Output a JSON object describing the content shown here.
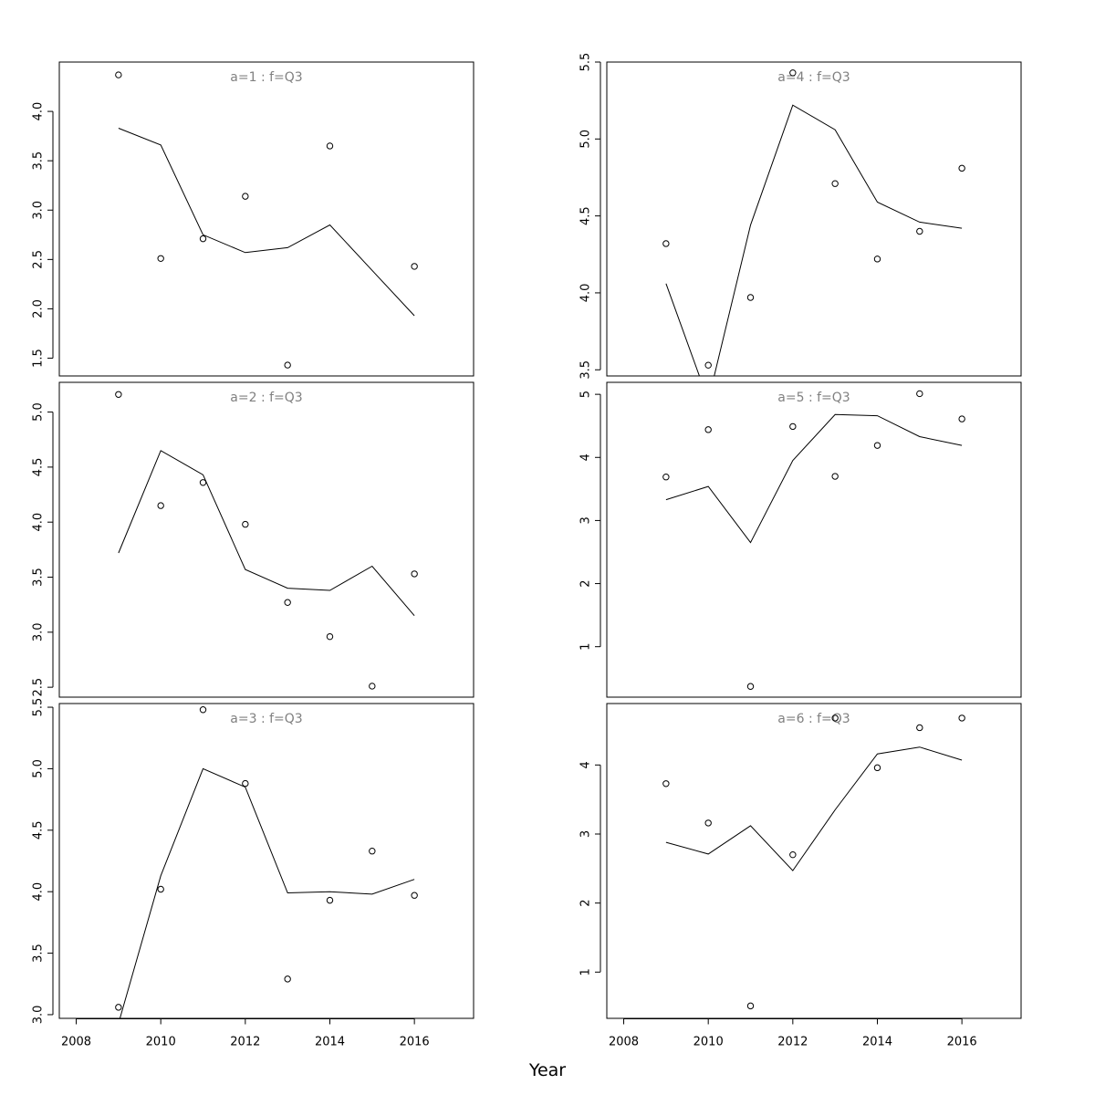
{
  "figure": {
    "xlabel": "Year"
  },
  "chart_data": [
    {
      "type": "line",
      "title": "a=1 : f=Q3",
      "x": [
        2009,
        2010,
        2011,
        2012,
        2013,
        2014,
        2015,
        2016
      ],
      "series": [
        {
          "style": "points",
          "values": [
            4.37,
            2.51,
            2.71,
            3.14,
            1.43,
            3.65,
            null,
            2.43
          ]
        },
        {
          "style": "line",
          "values": [
            3.83,
            3.66,
            2.75,
            2.57,
            2.62,
            2.85,
            2.39,
            1.93
          ]
        }
      ],
      "xlim": [
        2007.6,
        2017.4
      ],
      "ylim": [
        1.32,
        4.5
      ],
      "xticks": [
        2008,
        2010,
        2012,
        2014,
        2016
      ],
      "yticks": [
        1.5,
        2.0,
        2.5,
        3.0,
        3.5,
        4.0
      ],
      "ytick_labels": [
        "1.5",
        "2.0",
        "2.5",
        "3.0",
        "3.5",
        "4.0"
      ],
      "show_xaxis": false
    },
    {
      "type": "line",
      "title": "a=2 : f=Q3",
      "x": [
        2009,
        2010,
        2011,
        2012,
        2013,
        2014,
        2015,
        2016
      ],
      "series": [
        {
          "style": "points",
          "values": [
            5.16,
            4.15,
            4.36,
            3.98,
            3.27,
            2.96,
            2.51,
            3.53
          ]
        },
        {
          "style": "line",
          "values": [
            3.72,
            4.65,
            4.43,
            3.57,
            3.4,
            3.38,
            3.6,
            3.15
          ]
        }
      ],
      "xlim": [
        2007.6,
        2017.4
      ],
      "ylim": [
        2.41,
        5.27
      ],
      "xticks": [
        2008,
        2010,
        2012,
        2014,
        2016
      ],
      "yticks": [
        2.5,
        3.0,
        3.5,
        4.0,
        4.5,
        5.0
      ],
      "ytick_labels": [
        "2.5",
        "3.0",
        "3.5",
        "4.0",
        "4.5",
        "5.0"
      ],
      "show_xaxis": false
    },
    {
      "type": "line",
      "title": "a=3 : f=Q3",
      "x": [
        2009,
        2010,
        2011,
        2012,
        2013,
        2014,
        2015,
        2016
      ],
      "series": [
        {
          "style": "points",
          "values": [
            3.06,
            4.02,
            5.48,
            4.88,
            3.29,
            3.93,
            4.33,
            3.97
          ]
        },
        {
          "style": "line",
          "values": [
            2.93,
            4.13,
            5.0,
            4.85,
            3.99,
            4.0,
            3.98,
            4.1
          ]
        }
      ],
      "xlim": [
        2007.6,
        2017.4
      ],
      "ylim": [
        2.97,
        5.53
      ],
      "xticks": [
        2008,
        2010,
        2012,
        2014,
        2016
      ],
      "yticks": [
        3.0,
        3.5,
        4.0,
        4.5,
        5.0,
        5.5
      ],
      "ytick_labels": [
        "3.0",
        "3.5",
        "4.0",
        "4.5",
        "5.0",
        "5.5"
      ],
      "show_xaxis": true,
      "xtick_labels": [
        "2008",
        "2010",
        "2012",
        "2014",
        "2016"
      ]
    },
    {
      "type": "line",
      "title": "a=4 : f=Q3",
      "x": [
        2009,
        2010,
        2011,
        2012,
        2013,
        2014,
        2015,
        2016
      ],
      "series": [
        {
          "style": "points",
          "values": [
            4.32,
            3.53,
            3.97,
            5.43,
            4.71,
            4.22,
            4.4,
            4.81
          ]
        },
        {
          "style": "line",
          "values": [
            4.06,
            3.3,
            4.44,
            5.22,
            5.06,
            4.59,
            4.46,
            4.42
          ]
        }
      ],
      "xlim": [
        2007.6,
        2017.4
      ],
      "ylim": [
        3.46,
        5.5
      ],
      "xticks": [
        2008,
        2010,
        2012,
        2014,
        2016
      ],
      "yticks": [
        3.5,
        4.0,
        4.5,
        5.0,
        5.5
      ],
      "ytick_labels": [
        "3.5",
        "4.0",
        "4.5",
        "5.0",
        "5.5"
      ],
      "show_xaxis": false
    },
    {
      "type": "line",
      "title": "a=5 : f=Q3",
      "x": [
        2009,
        2010,
        2011,
        2012,
        2013,
        2014,
        2015,
        2016
      ],
      "series": [
        {
          "style": "points",
          "values": [
            3.69,
            4.44,
            0.37,
            4.49,
            3.7,
            4.19,
            5.01,
            4.61
          ]
        },
        {
          "style": "line",
          "values": [
            3.33,
            3.54,
            2.65,
            3.95,
            4.68,
            4.66,
            4.33,
            4.19
          ]
        }
      ],
      "xlim": [
        2007.6,
        2017.4
      ],
      "ylim": [
        0.2,
        5.19
      ],
      "xticks": [
        2008,
        2010,
        2012,
        2014,
        2016
      ],
      "yticks": [
        1,
        2,
        3,
        4,
        5
      ],
      "ytick_labels": [
        "1",
        "2",
        "3",
        "4",
        "5"
      ],
      "show_xaxis": false
    },
    {
      "type": "line",
      "title": "a=6 : f=Q3",
      "x": [
        2009,
        2010,
        2011,
        2012,
        2013,
        2014,
        2015,
        2016
      ],
      "series": [
        {
          "style": "points",
          "values": [
            3.73,
            3.16,
            0.51,
            2.7,
            4.68,
            3.96,
            4.54,
            4.68
          ]
        },
        {
          "style": "line",
          "values": [
            2.88,
            2.71,
            3.12,
            2.47,
            3.35,
            4.16,
            4.26,
            4.07
          ]
        }
      ],
      "xlim": [
        2007.6,
        2017.4
      ],
      "ylim": [
        0.33,
        4.89
      ],
      "xticks": [
        2008,
        2010,
        2012,
        2014,
        2016
      ],
      "yticks": [
        1,
        2,
        3,
        4
      ],
      "ytick_labels": [
        "1",
        "2",
        "3",
        "4"
      ],
      "show_xaxis": true,
      "xtick_labels": [
        "2008",
        "2010",
        "2012",
        "2014",
        "2016"
      ]
    }
  ]
}
